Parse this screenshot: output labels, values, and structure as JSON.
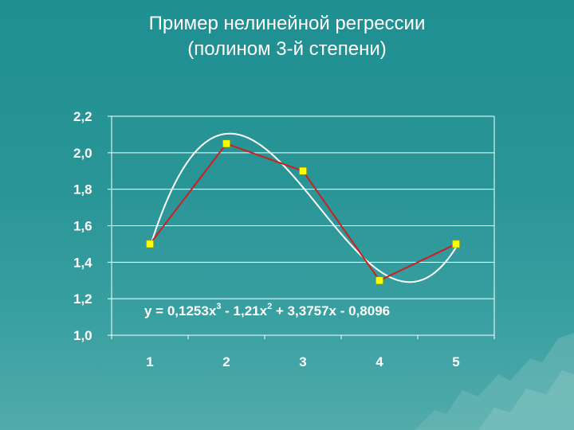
{
  "title": {
    "line1": "Пример нелинейной регрессии",
    "line2": "(полином 3-й степени)"
  },
  "chart_data": {
    "type": "line",
    "x": [
      1,
      2,
      3,
      4,
      5
    ],
    "categories": [
      "1",
      "2",
      "3",
      "4",
      "5"
    ],
    "series": [
      {
        "values": [
          1.5,
          2.05,
          1.9,
          1.3,
          1.5
        ],
        "color": "#cc1f1f",
        "marker_color": "#ffff00",
        "marker": "square"
      }
    ],
    "trendline": {
      "type": "polynomial",
      "degree": 3,
      "coefficients": [
        0.1253,
        -1.21,
        3.3757,
        -0.8096
      ],
      "color": "#ffffff",
      "equation": {
        "prefix": "y = 0,1253x",
        "sup1": "3",
        "mid1": " - 1,21x",
        "sup2": "2",
        "rest": " + 3,3757x - 0,8096"
      }
    },
    "ylim": [
      1.0,
      2.2
    ],
    "yticks": [
      1.0,
      1.2,
      1.4,
      1.6,
      1.8,
      2.0,
      2.2
    ],
    "ytick_labels": [
      "1,0",
      "1,2",
      "1,4",
      "1,6",
      "1,8",
      "2,0",
      "2,2"
    ],
    "grid": true,
    "legend": "none",
    "xlabel": "",
    "ylabel": ""
  },
  "colors": {
    "grid": "#ffffff",
    "axis": "#ffffff",
    "background_top": "#1f8f91",
    "background_bottom": "#52abab"
  }
}
